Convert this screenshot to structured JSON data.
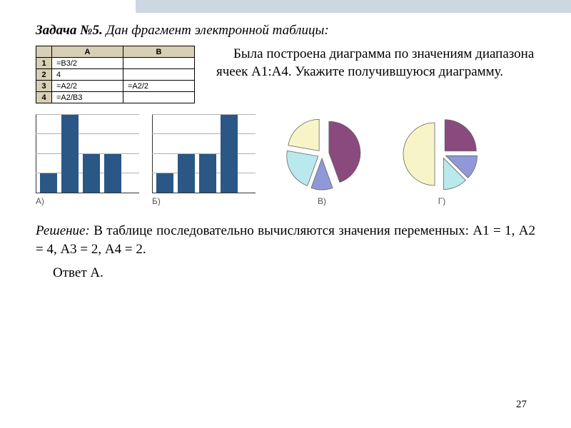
{
  "title_label": "Задача №5.",
  "title_rest": " Дан фрагмент электронной таблицы:",
  "paragraph": "Была построена диаграмма по значениям диапазона ячеек А1:А4. Укажите получившуюся диаграмму.",
  "table": {
    "header_bg": "#d7d0b6",
    "columns": [
      "",
      "A",
      "B"
    ],
    "rows": [
      {
        "n": "1",
        "A": "=B3/2",
        "B": ""
      },
      {
        "n": "2",
        "A": "4",
        "B": ""
      },
      {
        "n": "3",
        "A": "=A2/2",
        "B": "=A2/2"
      },
      {
        "n": "4",
        "A": "=A2/B3",
        "B": ""
      }
    ]
  },
  "bar_color": "#2a5785",
  "grid_color": "#b0b0b0",
  "bar_chart_a": {
    "label": "А)",
    "max": 4,
    "gridlines": [
      1,
      2,
      3,
      4
    ],
    "values": [
      1,
      4,
      2,
      2
    ]
  },
  "bar_chart_b": {
    "label": "Б)",
    "max": 4,
    "gridlines": [
      1,
      2,
      3,
      4
    ],
    "values": [
      1,
      2,
      2,
      4
    ]
  },
  "pie_colors": {
    "purple": "#8a4a7e",
    "blue": "#8f98d8",
    "teal": "#b9e9ed",
    "yellow": "#f7f5c8"
  },
  "pie_chart_c": {
    "label": "В)",
    "slices": [
      {
        "value": 4,
        "pull": 10
      },
      {
        "value": 1,
        "pull": 6
      },
      {
        "value": 2,
        "pull": 6
      },
      {
        "value": 2,
        "pull": 6
      }
    ]
  },
  "pie_chart_d": {
    "label": "Г)",
    "slices": [
      {
        "value": 2,
        "pull": 6
      },
      {
        "value": 1,
        "pull": 6
      },
      {
        "value": 1,
        "pull": 6
      },
      {
        "value": 4,
        "pull": 10
      }
    ]
  },
  "solution_label": "Решение:",
  "solution_text": " В таблице последовательно вычисляются значения переменных: А1 = 1, А2 = 4, А3 = 2, А4 = 2.",
  "answer": "Ответ А.",
  "page_number": "27"
}
